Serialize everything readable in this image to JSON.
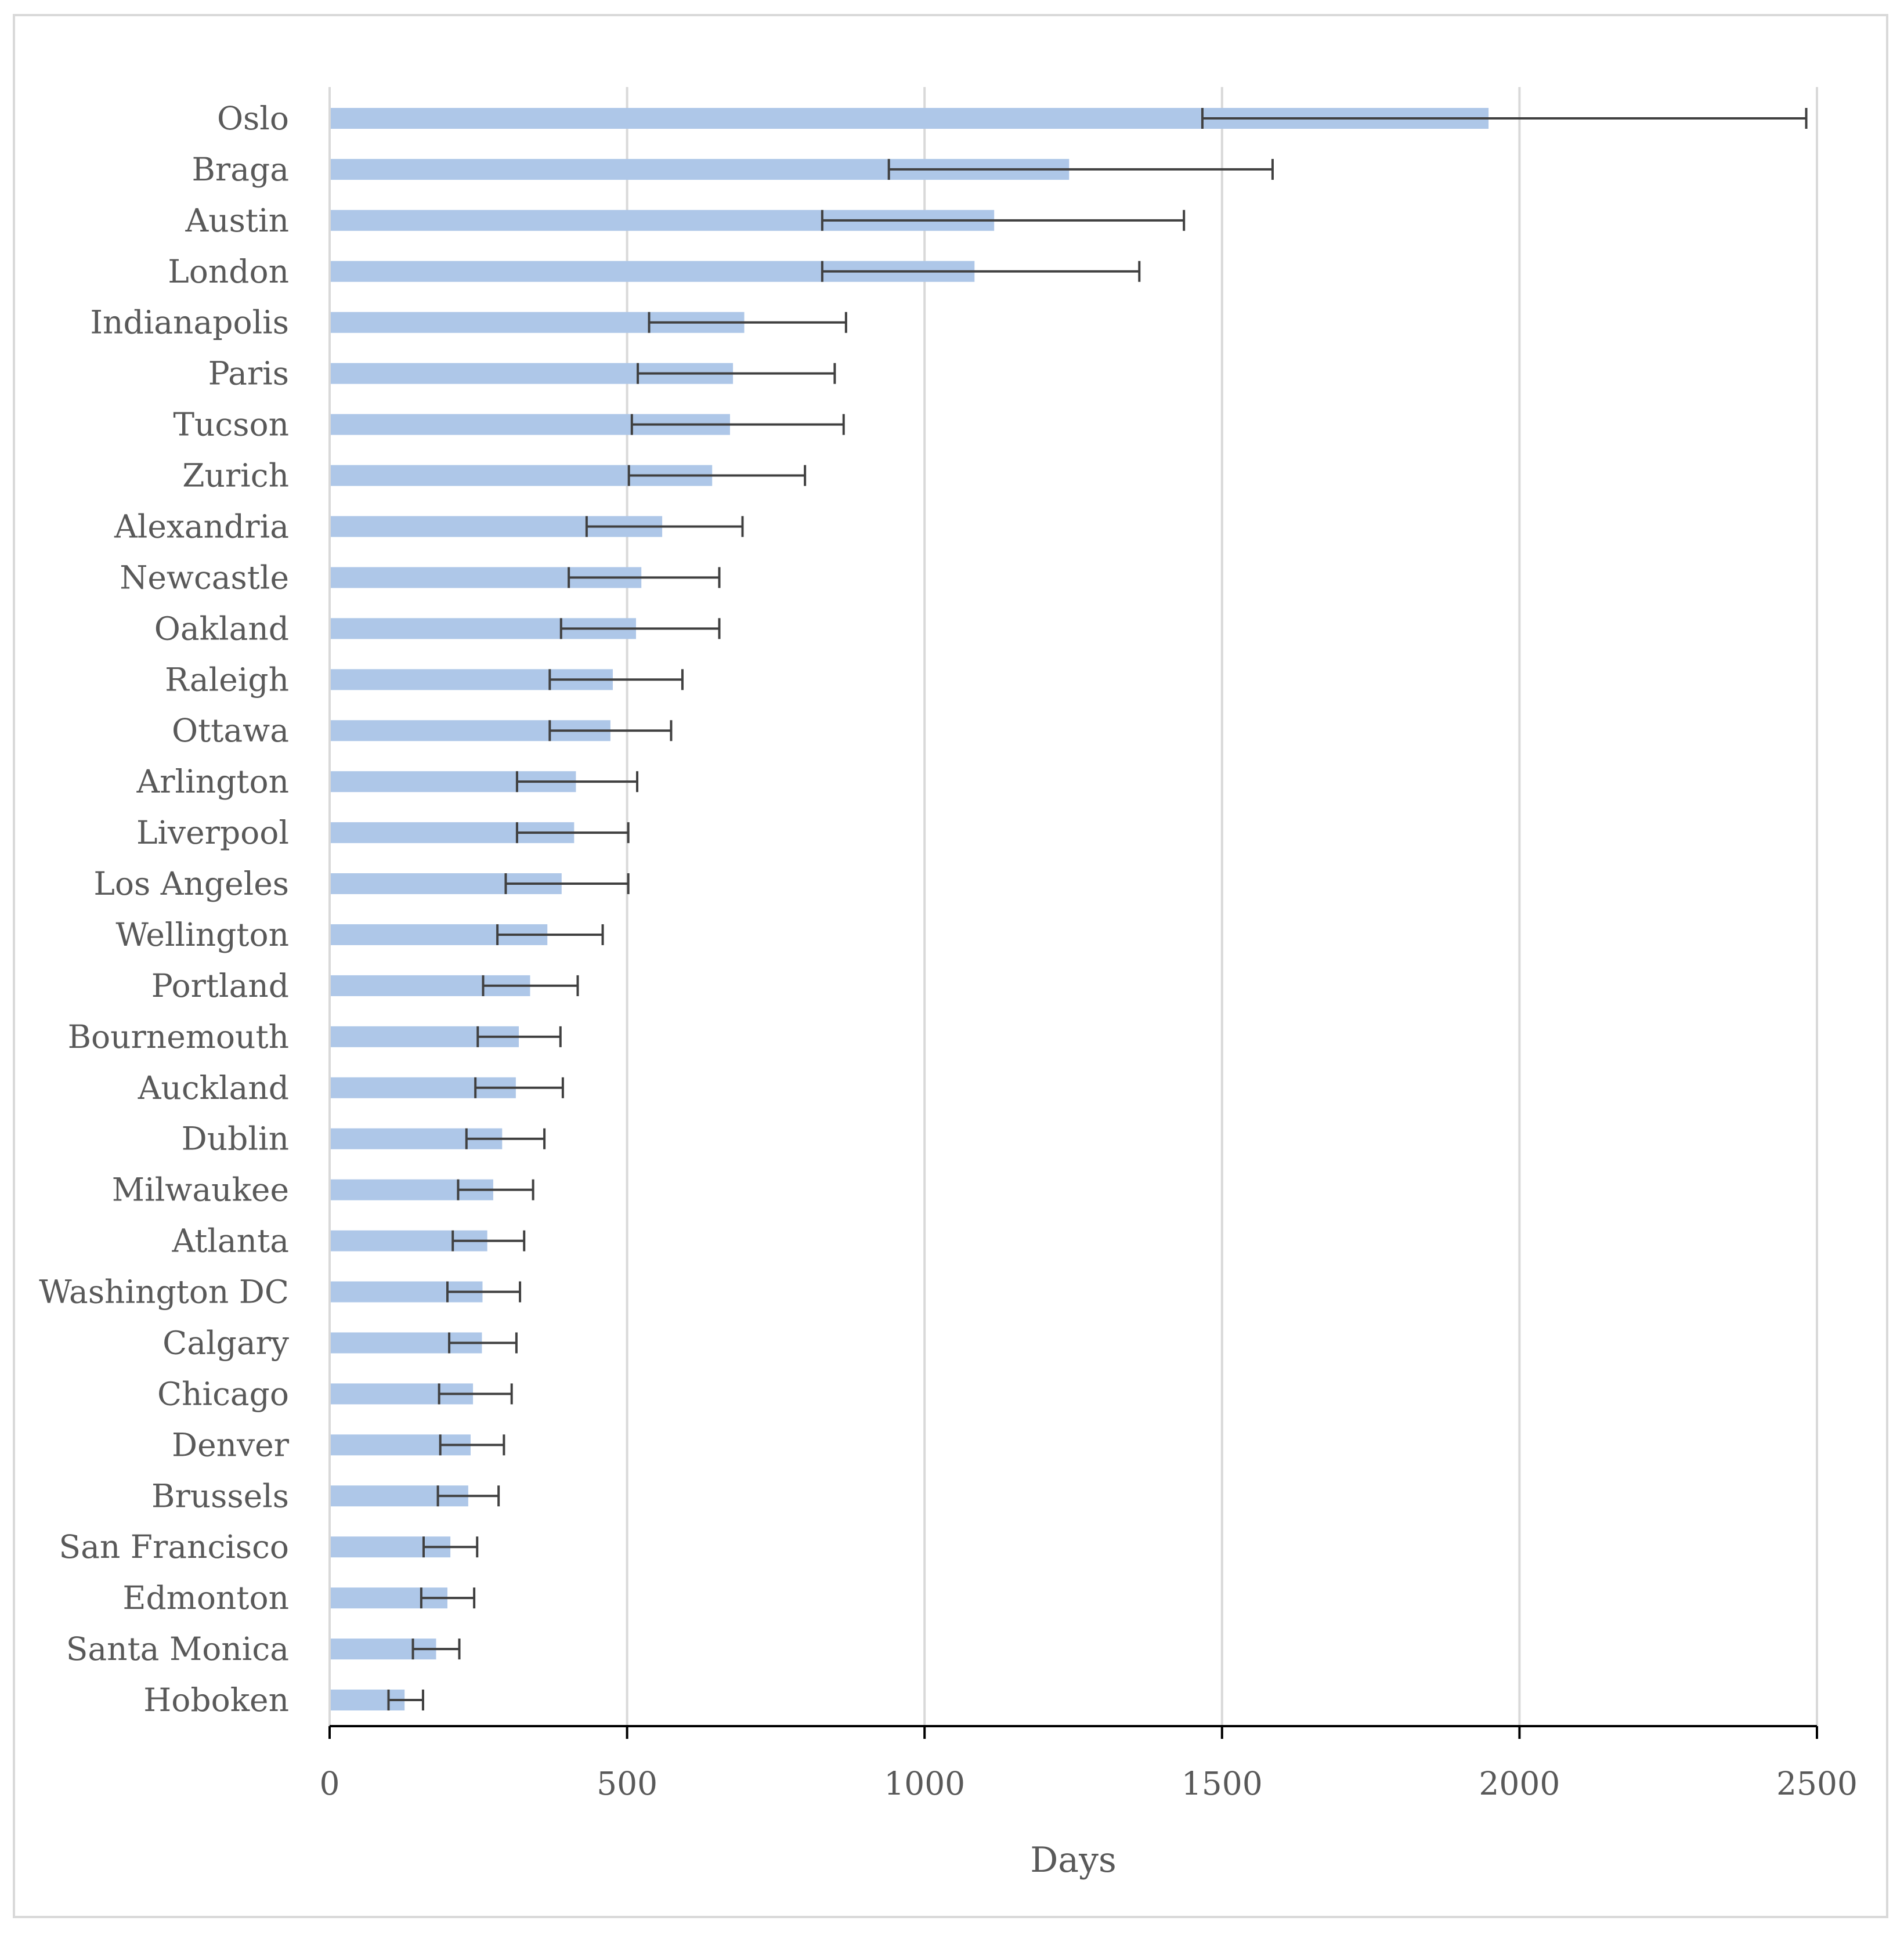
{
  "chart_data": {
    "type": "bar",
    "orientation": "horizontal",
    "title": "",
    "xlabel": "Days",
    "ylabel": "",
    "xlim": [
      0,
      2500
    ],
    "xticks": [
      0,
      500,
      1000,
      1500,
      2000,
      2500
    ],
    "grid": "vertical",
    "legend": "none",
    "bar_color": "#aec7e8",
    "error_bar_color": "#404040",
    "gridline_color": "#d9d9d9",
    "categories": [
      "Oslo",
      "Braga",
      "Austin",
      "London",
      "Indianapolis",
      "Paris",
      "Tucson",
      "Zurich",
      "Alexandria",
      "Newcastle",
      "Oakland",
      "Raleigh",
      "Ottawa",
      "Arlington",
      "Liverpool",
      "Los Angeles",
      "Wellington",
      "Portland",
      "Bournemouth",
      "Auckland",
      "Dublin",
      "Milwaukee",
      "Atlanta",
      "Washington DC",
      "Calgary",
      "Chicago",
      "Denver",
      "Brussels",
      "San Francisco",
      "Edmonton",
      "Santa Monica",
      "Hoboken"
    ],
    "values": [
      1948,
      1243,
      1117,
      1084,
      697,
      678,
      673,
      643,
      559,
      524,
      515,
      476,
      472,
      414,
      411,
      390,
      366,
      337,
      318,
      313,
      290,
      275,
      265,
      257,
      256,
      241,
      237,
      233,
      203,
      198,
      179,
      126
    ],
    "error_low": [
      1467,
      940,
      828,
      828,
      537,
      518,
      508,
      503,
      432,
      402,
      389,
      370,
      370,
      315,
      315,
      296,
      282,
      258,
      249,
      245,
      230,
      216,
      207,
      198,
      201,
      184,
      186,
      182,
      158,
      154,
      140,
      99
    ],
    "error_high": [
      2482,
      1585,
      1436,
      1361,
      868,
      849,
      864,
      799,
      694,
      655,
      655,
      593,
      574,
      517,
      502,
      502,
      459,
      417,
      388,
      392,
      361,
      342,
      327,
      320,
      314,
      306,
      293,
      284,
      248,
      243,
      218,
      157
    ]
  }
}
